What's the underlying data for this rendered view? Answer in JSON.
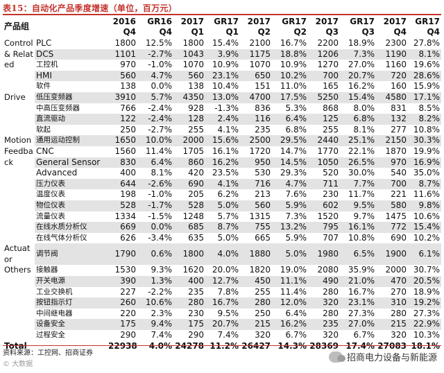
{
  "title": "表15：自动化产品季度增速（单位，百万元）",
  "headers": {
    "category": "产品组",
    "subcategory": "",
    "cols": [
      "2016\nQ4",
      "GR16\nQ4",
      "2017\nQ1",
      "GR17\nQ1",
      "2017\nQ2",
      "GR17\nQ2",
      "2017\nQ3",
      "GR17\nQ3",
      "2017\nQ4",
      "GR17\nQ4"
    ]
  },
  "groups": [
    {
      "name": "Control & Related",
      "rows": [
        {
          "name": "PLC",
          "v": [
            "1800",
            "12.5%",
            "1800",
            "15.4%",
            "2100",
            "16.7%",
            "2200",
            "18.9%",
            "2300",
            "27.8%"
          ]
        },
        {
          "name": "DCS",
          "v": [
            "1101",
            "-2.7%",
            "1043",
            "3.9%",
            "1175",
            "18.8%",
            "1206",
            "7.3%",
            "1190",
            "8.1%"
          ]
        },
        {
          "name": "工控机",
          "v": [
            "970",
            "-1.0%",
            "1070",
            "10.9%",
            "1070",
            "10.9%",
            "1270",
            "27.0%",
            "1160",
            "19.6%"
          ]
        },
        {
          "name": "HMI",
          "v": [
            "560",
            "4.7%",
            "560",
            "23.1%",
            "650",
            "10.2%",
            "700",
            "20.7%",
            "720",
            "28.6%"
          ]
        },
        {
          "name": "软件",
          "v": [
            "138",
            "0.0%",
            "138",
            "10.4%",
            "151",
            "11.0%",
            "165",
            "16.2%",
            "160",
            "15.9%"
          ]
        }
      ]
    },
    {
      "name": "Drive",
      "rows": [
        {
          "name": "低压变频器",
          "v": [
            "3910",
            "5.7%",
            "4350",
            "13.0%",
            "4700",
            "17.5%",
            "5250",
            "15.4%",
            "4580",
            "17.1%"
          ]
        },
        {
          "name": "中高压变频器",
          "v": [
            "766",
            "-2.4%",
            "928",
            "-1.3%",
            "836",
            "5.3%",
            "868",
            "8.0%",
            "831",
            "8.5%"
          ]
        },
        {
          "name": "直流驱动",
          "v": [
            "122",
            "-2.4%",
            "128",
            "2.4%",
            "116",
            "6.4%",
            "125",
            "6.8%",
            "132",
            "8.2%"
          ]
        },
        {
          "name": "软起",
          "v": [
            "250",
            "-2.7%",
            "255",
            "4.1%",
            "235",
            "6.8%",
            "255",
            "8.1%",
            "277",
            "10.8%"
          ]
        }
      ]
    },
    {
      "name": "Motion Feedback",
      "rows": [
        {
          "name": "通用运动控制",
          "v": [
            "1650",
            "10.0%",
            "2000",
            "15.6%",
            "2500",
            "29.5%",
            "2440",
            "25.1%",
            "2150",
            "30.3%"
          ]
        },
        {
          "name": "CNC",
          "v": [
            "1560",
            "11.4%",
            "1705",
            "16.1%",
            "1720",
            "14.7%",
            "1770",
            "22.1%",
            "1870",
            "19.9%"
          ]
        },
        {
          "name": "General Sensor",
          "v": [
            "830",
            "6.4%",
            "860",
            "16.2%",
            "950",
            "14.5%",
            "1050",
            "26.5%",
            "970",
            "16.9%"
          ]
        },
        {
          "name": "Advanced",
          "v": [
            "400",
            "8.1%",
            "420",
            "23.5%",
            "530",
            "29.3%",
            "520",
            "30.0%",
            "540",
            "35.0%"
          ]
        },
        {
          "name": "压力仪表",
          "v": [
            "644",
            "-2.6%",
            "690",
            "4.1%",
            "716",
            "4.7%",
            "711",
            "7.7%",
            "700",
            "8.7%"
          ]
        },
        {
          "name": "温度仪表",
          "v": [
            "198",
            "-1.0%",
            "205",
            "6.2%",
            "213",
            "7.6%",
            "230",
            "11.7%",
            "221",
            "11.6%"
          ]
        },
        {
          "name": "物位仪表",
          "v": [
            "528",
            "-1.7%",
            "528",
            "5.0%",
            "560",
            "5.9%",
            "602",
            "9.5%",
            "580",
            "9.8%"
          ]
        },
        {
          "name": "流量仪表",
          "v": [
            "1334",
            "-1.5%",
            "1248",
            "5.7%",
            "1315",
            "7.3%",
            "1520",
            "9.7%",
            "1475",
            "10.6%"
          ]
        },
        {
          "name": "在线水质分析仪",
          "v": [
            "669",
            "0.0%",
            "685",
            "8.7%",
            "755",
            "13.2%",
            "795",
            "16.1%",
            "772",
            "15.4%"
          ]
        },
        {
          "name": "在线气体分析仪",
          "v": [
            "626",
            "-3.4%",
            "635",
            "5.0%",
            "665",
            "5.9%",
            "707",
            "10.8%",
            "690",
            "10.2%"
          ]
        }
      ]
    },
    {
      "name": "Actuator",
      "rows": [
        {
          "name": "调节阀",
          "v": [
            "1790",
            "0.6%",
            "1800",
            "4.0%",
            "1880",
            "5.0%",
            "1980",
            "6.5%",
            "1900",
            "6.1%"
          ]
        }
      ]
    },
    {
      "name": "Others",
      "rows": [
        {
          "name": "接触器",
          "v": [
            "1530",
            "9.3%",
            "1620",
            "20.0%",
            "1820",
            "19.0%",
            "2080",
            "35.9%",
            "2000",
            "30.7%"
          ]
        },
        {
          "name": "开关电源",
          "v": [
            "390",
            "1.3%",
            "400",
            "12.7%",
            "450",
            "11.1%",
            "490",
            "21.0%",
            "470",
            "20.5%"
          ]
        },
        {
          "name": "工业交换机",
          "v": [
            "227",
            "-2.2%",
            "235",
            "7.8%",
            "255",
            "11.4%",
            "280",
            "16.7%",
            "270",
            "18.9%"
          ]
        },
        {
          "name": "按钮指示灯",
          "v": [
            "260",
            "10.6%",
            "280",
            "16.7%",
            "280",
            "12.0%",
            "320",
            "23.1%",
            "310",
            "19.2%"
          ]
        },
        {
          "name": "中间继电器",
          "v": [
            "220",
            "2.3%",
            "230",
            "9.5%",
            "250",
            "6.4%",
            "280",
            "27.3%",
            "280",
            "27.3%"
          ]
        },
        {
          "name": "设备安全",
          "v": [
            "175",
            "9.4%",
            "175",
            "20.7%",
            "215",
            "16.2%",
            "235",
            "27.0%",
            "215",
            "22.9%"
          ]
        },
        {
          "name": "过程安全",
          "v": [
            "290",
            "7.4%",
            "290",
            "7.4%",
            "320",
            "6.7%",
            "320",
            "6.7%",
            "320",
            "10.3%"
          ]
        }
      ]
    }
  ],
  "total": {
    "label": "Total",
    "v": [
      "22938",
      "4.0%",
      "24278",
      "11.2%",
      "26427",
      "14.3%",
      "28369",
      "17.4%",
      "27083",
      "18.1%"
    ]
  },
  "footer": {
    "source": "资料来源：工控网、招商证券",
    "watermark": "© 大数据",
    "brand": "招商电力设备与新能源"
  }
}
